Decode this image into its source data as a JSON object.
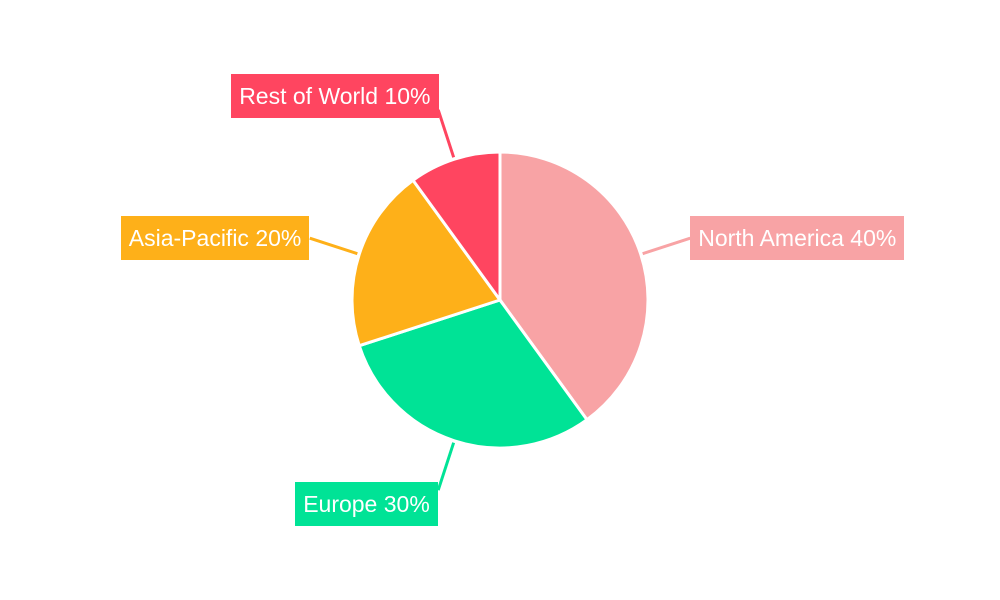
{
  "chart_data": {
    "type": "pie",
    "start": "top",
    "direction": "clockwise",
    "slices": [
      {
        "label": "North America",
        "value": 40,
        "display": "North America 40%",
        "color": "#F8A3A5"
      },
      {
        "label": "Europe",
        "value": 30,
        "display": "Europe 30%",
        "color": "#00E396"
      },
      {
        "label": "Asia-Pacific",
        "value": 20,
        "display": "Asia-Pacific 20%",
        "color": "#FEB019"
      },
      {
        "label": "Rest of World",
        "value": 10,
        "display": "Rest of World 10%",
        "color": "#FF4560"
      }
    ]
  }
}
